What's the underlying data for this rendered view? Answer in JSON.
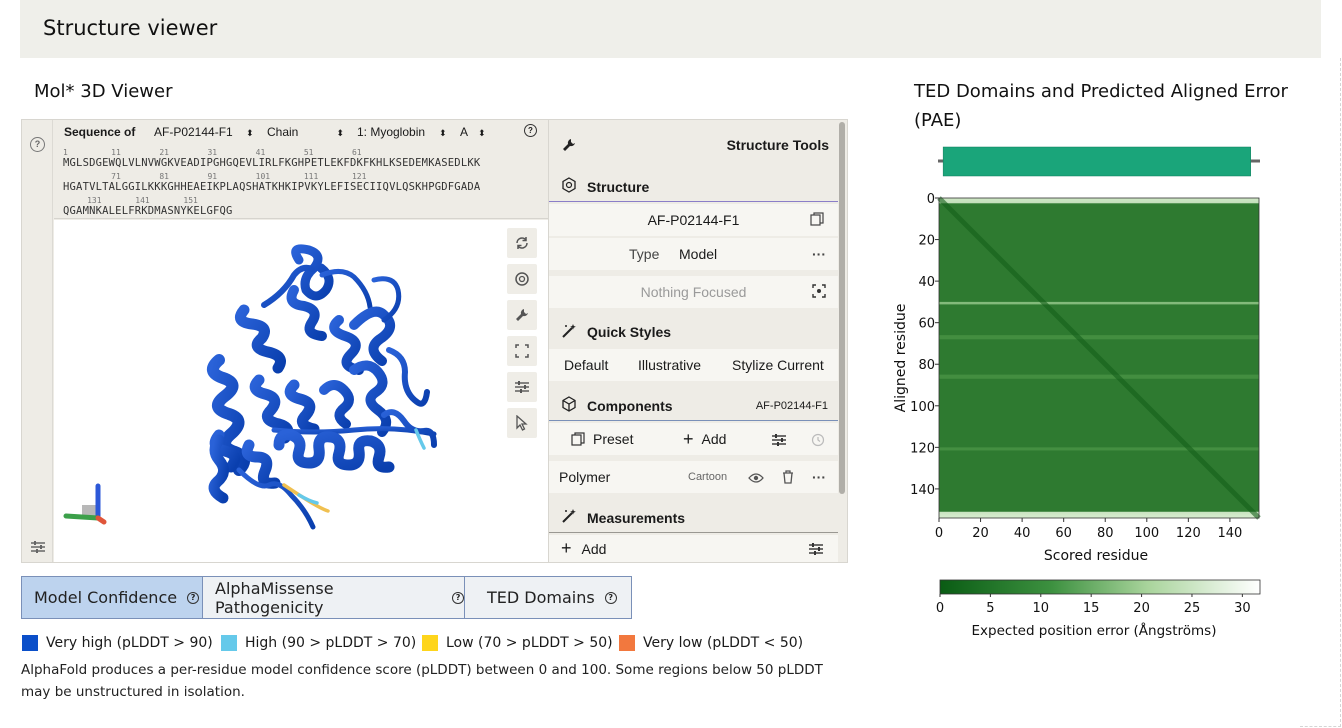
{
  "header": {
    "title": "Structure viewer"
  },
  "viewer_section": {
    "title": "Mol* 3D Viewer"
  },
  "pae_section": {
    "title_line1": "TED Domains and Predicted Aligned Error",
    "title_line2": "(PAE)"
  },
  "sequence_panel": {
    "label": "Sequence of",
    "entry": "AF-P02144-F1",
    "mode": "Chain",
    "entity": "1: Myoglobin",
    "chain": "A",
    "lines": [
      {
        "numbers": "1         11        21        31        41        51        61",
        "sequence": "MGLSDGEWQLVLNVWGKVEADIPGHGQEVLIRLFKGHPETLEKFDKFKHLKSEDEMKASEDLKK"
      },
      {
        "numbers": "          71        81        91        101       111       121",
        "sequence": "HGATVLTALGGILKKKGHHEAEIKPLAQSHATKHKIPVKYLEFISECIIQVLQSKHPGDFGADA"
      },
      {
        "numbers": "     131       141       151",
        "sequence": "QGAMNKALELFRKDMASNYKELGFQG"
      }
    ]
  },
  "structure_tools": {
    "title": "Structure Tools",
    "structure_header": "Structure",
    "structure_name": "AF-P02144-F1",
    "type_label": "Type",
    "type_value": "Model",
    "focus_text": "Nothing Focused",
    "quick_styles_header": "Quick Styles",
    "quick_styles": [
      "Default",
      "Illustrative",
      "Stylize Current"
    ],
    "components_header": "Components",
    "components_entry": "AF-P02144-F1",
    "preset_label": "Preset",
    "add_label": "Add",
    "polymer_label": "Polymer",
    "polymer_repr": "Cartoon",
    "measurements_header": "Measurements",
    "measurements_add": "Add"
  },
  "tabs": [
    {
      "label": "Model Confidence",
      "active": true
    },
    {
      "label": "AlphaMissense Pathogenicity",
      "active": false
    },
    {
      "label": "TED Domains",
      "active": false
    }
  ],
  "legend": [
    {
      "label": "Very high (pLDDT > 90)",
      "color": "#0b4fc9"
    },
    {
      "label": "High (90 > pLDDT > 70)",
      "color": "#65c9ea"
    },
    {
      "label": "Low (70 > pLDDT > 50)",
      "color": "#fed51c"
    },
    {
      "label": "Very low (pLDDT < 50)",
      "color": "#f2783e"
    }
  ],
  "description": "AlphaFold produces a per-residue model confidence score (pLDDT) between 0 and 100. Some regions below 50 pLDDT may be unstructured in isolation.",
  "chart_data": {
    "type": "heatmap",
    "xlabel": "Scored residue",
    "ylabel": "Aligned residue",
    "x_ticks": [
      0,
      20,
      40,
      60,
      80,
      100,
      120,
      140
    ],
    "y_ticks": [
      0,
      20,
      40,
      60,
      80,
      100,
      120,
      140
    ],
    "xlim": [
      0,
      154
    ],
    "ylim": [
      0,
      154
    ],
    "colorbar": {
      "label": "Expected position error (Ångströms)",
      "ticks": [
        0,
        5,
        10,
        15,
        20,
        25,
        30
      ],
      "range": [
        0,
        31.75
      ]
    },
    "ted_domains": [
      {
        "start": 2,
        "end": 150,
        "color": "#1aa57a"
      }
    ],
    "colors": {
      "low_error": "#0a5c14",
      "high_error": "#ffffff"
    }
  }
}
